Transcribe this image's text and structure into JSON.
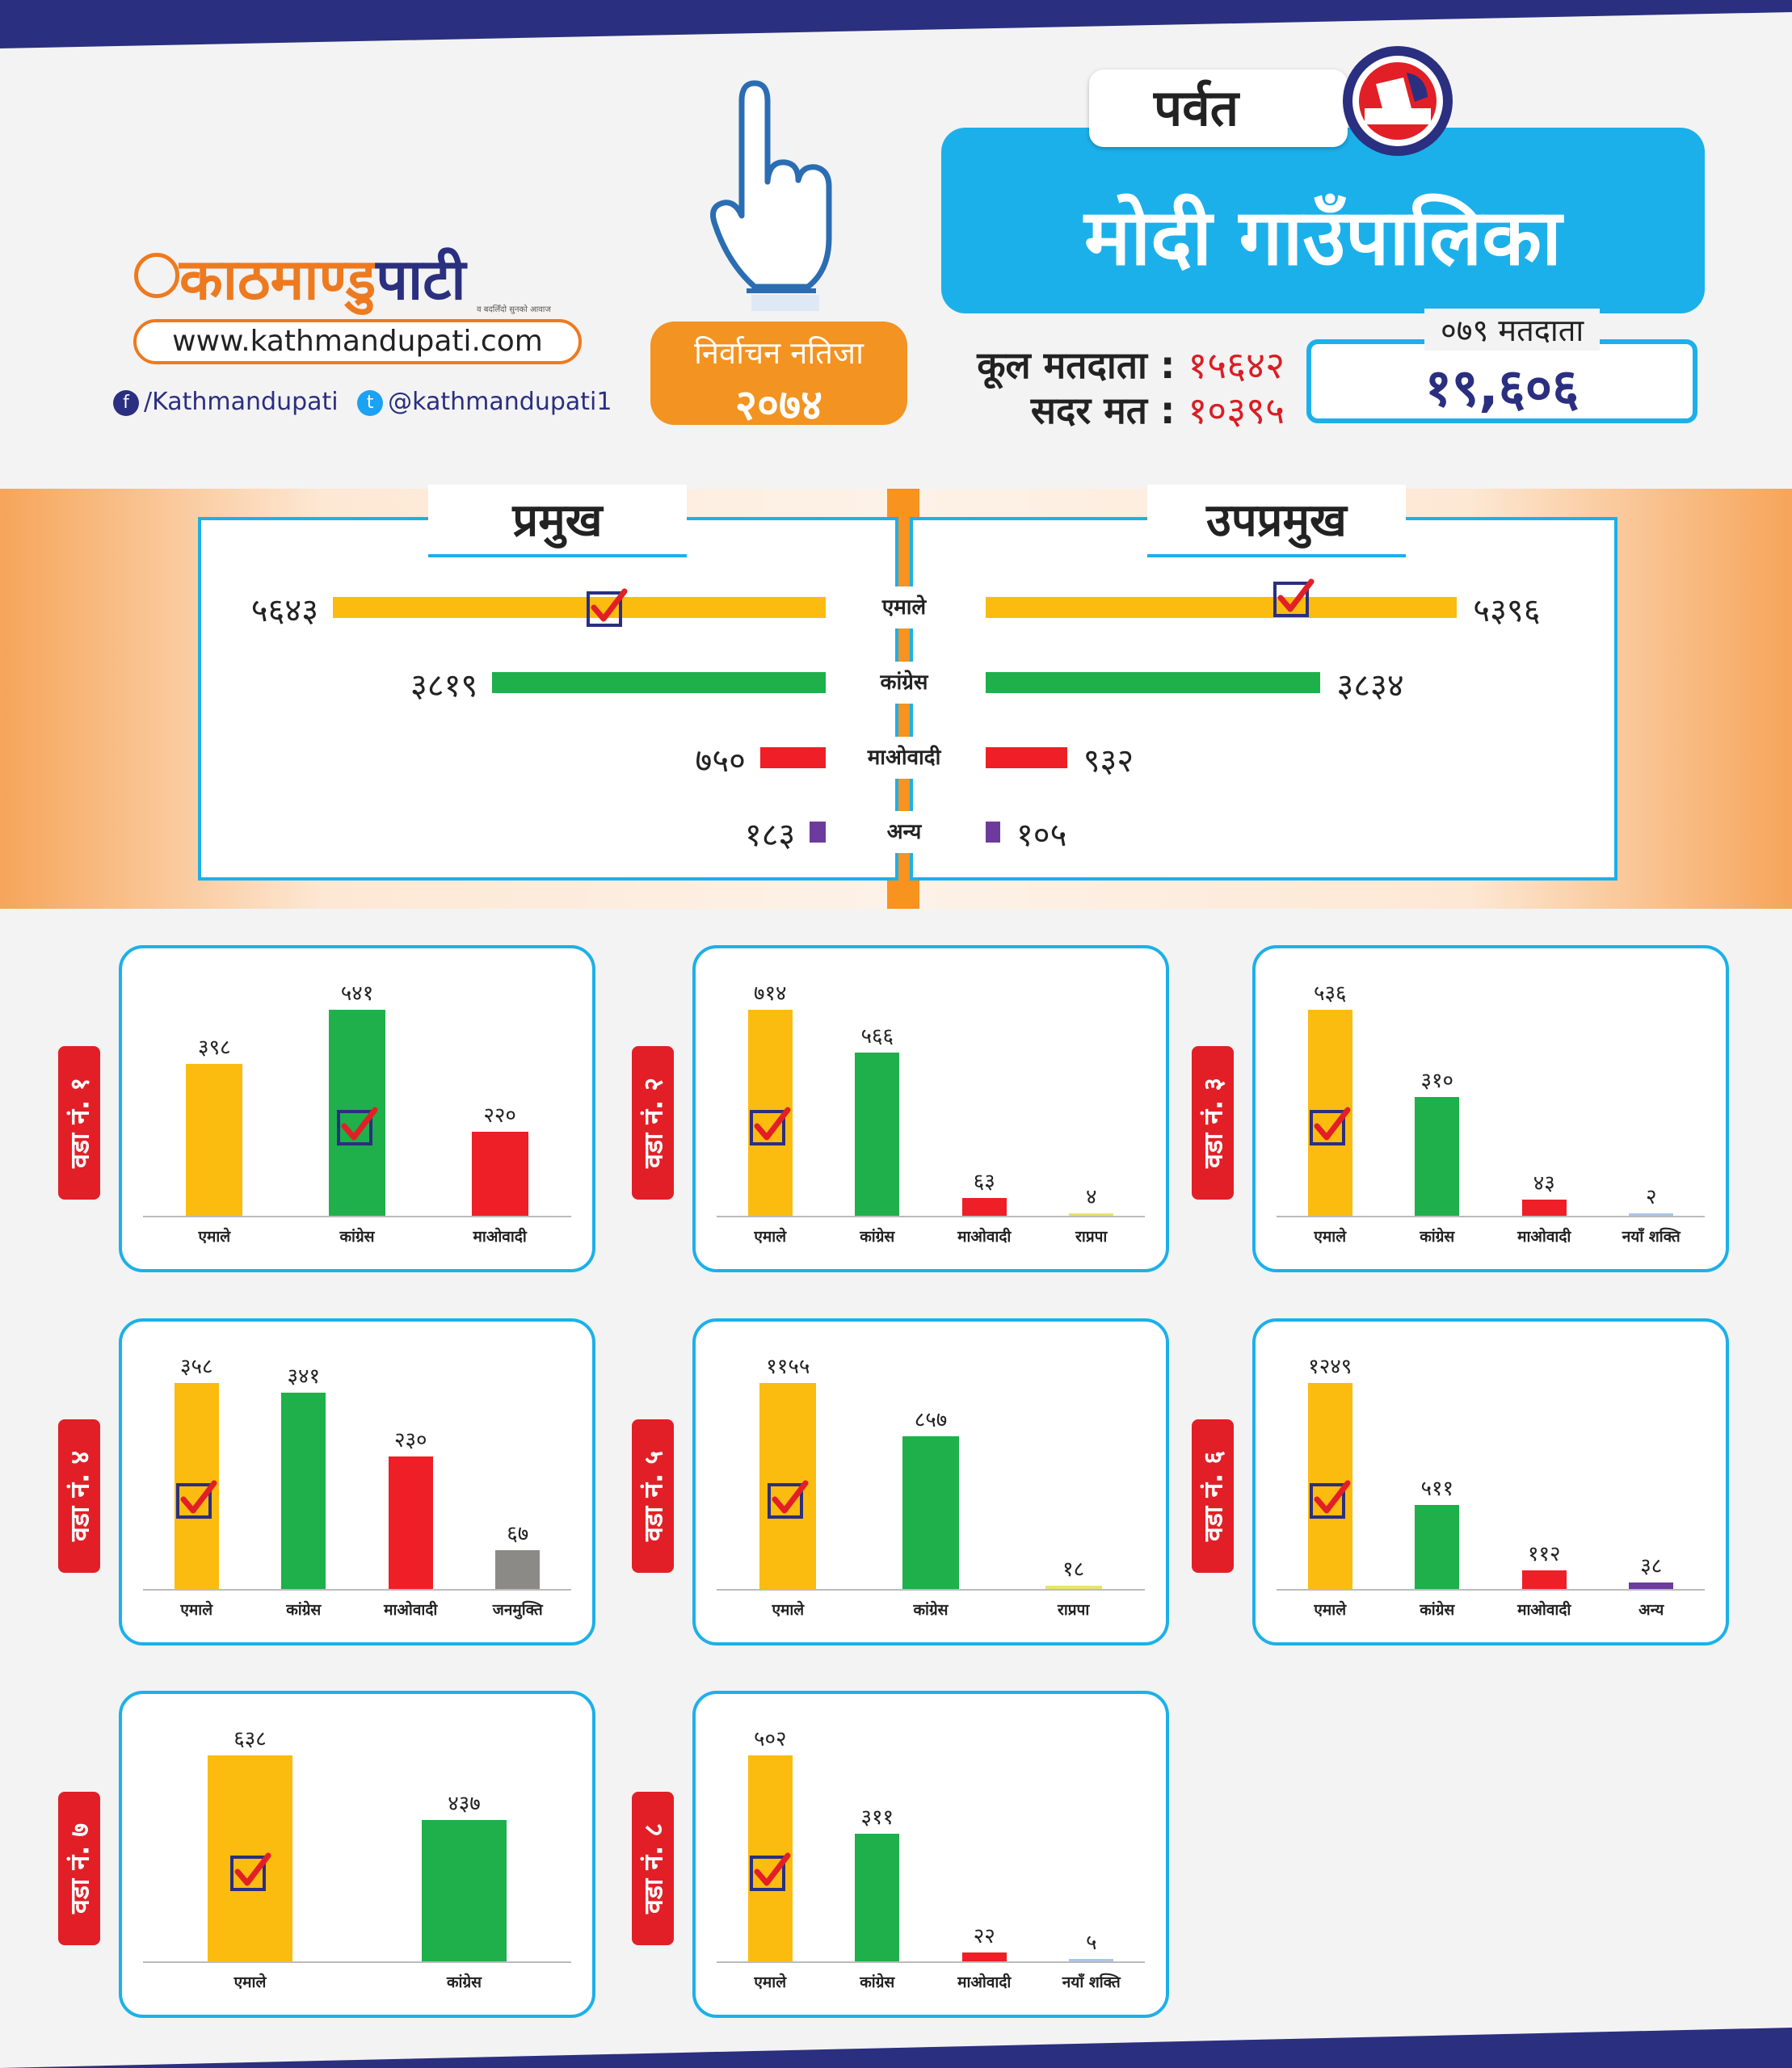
{
  "brand": {
    "logo_pre": "काठमाण्डु",
    "logo_post": "पाटी",
    "tagline": "व बदलिँदो सुनको आवाज",
    "url": "www.kathmandupati.com",
    "facebook": "/Kathmandupati",
    "twitter": "@kathmandupati1"
  },
  "header": {
    "election_label": "निर्वाचन नतिजा",
    "election_year": "२०७४",
    "district": "पर्वत",
    "municipality": "मोदी गाउँपालिका",
    "total_voters_label": "कूल मतदाता",
    "total_voters": "१५६४२",
    "valid_votes_label": "सदर मत",
    "valid_votes": "१०३९५",
    "voters_079_label": "०७९ मतदाता",
    "voters_079": "१९,६०६"
  },
  "colors": {
    "uml": "#fbbc0f",
    "congress": "#1faf4b",
    "maoist": "#ee1f26",
    "other": "#6d3b9c",
    "rpp": "#e8e36b",
    "naya_shakti": "#a9c6e8",
    "janamukti": "#8c8a87",
    "accent_blue": "#1cb0ea",
    "accent_orange": "#f39321",
    "navy": "#2b2f7f"
  },
  "icons": [
    "vote-finger-icon",
    "ballot-box-icon",
    "facebook-icon",
    "twitter-icon",
    "checkmark-icon"
  ],
  "summary": {
    "chief_title": "प्रमुख",
    "deputy_title": "उपप्रमुख",
    "parties": [
      "एमाले",
      "कांग्रेस",
      "माओवादी",
      "अन्य"
    ]
  },
  "chart_data": [
    {
      "type": "bar",
      "orientation": "horizontal",
      "title": "प्रमुख",
      "categories": [
        "एमाले",
        "कांग्रेस",
        "माओवादी",
        "अन्य"
      ],
      "values": [
        5643,
        3819,
        750,
        183
      ],
      "labels": [
        "५६४३",
        "३८१९",
        "७५०",
        "१८३"
      ],
      "winner": "एमाले"
    },
    {
      "type": "bar",
      "orientation": "horizontal",
      "title": "उपप्रमुख",
      "categories": [
        "एमाले",
        "कांग्रेस",
        "माओवादी",
        "अन्य"
      ],
      "values": [
        5396,
        3834,
        932,
        105
      ],
      "labels": [
        "५३९६",
        "३८३४",
        "९३२",
        "१०५"
      ],
      "winner": "एमाले"
    },
    {
      "type": "bar",
      "title": "वडा नं. १",
      "categories": [
        "एमाले",
        "कांग्रेस",
        "माओवादी"
      ],
      "values": [
        398,
        541,
        220
      ],
      "labels": [
        "३९८",
        "५४१",
        "२२०"
      ],
      "colors": [
        "uml",
        "congress",
        "maoist"
      ],
      "winner": "कांग्रेस"
    },
    {
      "type": "bar",
      "title": "वडा नं. २",
      "categories": [
        "एमाले",
        "कांग्रेस",
        "माओवादी",
        "राप्रपा"
      ],
      "values": [
        714,
        566,
        63,
        4
      ],
      "labels": [
        "७१४",
        "५६६",
        "६३",
        "४"
      ],
      "colors": [
        "uml",
        "congress",
        "maoist",
        "rpp"
      ],
      "winner": "एमाले"
    },
    {
      "type": "bar",
      "title": "वडा नं. ३",
      "categories": [
        "एमाले",
        "कांग्रेस",
        "माओवादी",
        "नयाँ शक्ति"
      ],
      "values": [
        536,
        310,
        43,
        2
      ],
      "labels": [
        "५३६",
        "३१०",
        "४३",
        "२"
      ],
      "colors": [
        "uml",
        "congress",
        "maoist",
        "naya_shakti"
      ],
      "winner": "एमाले"
    },
    {
      "type": "bar",
      "title": "वडा नं. ४",
      "categories": [
        "एमाले",
        "कांग्रेस",
        "माओवादी",
        "जनमुक्ति"
      ],
      "values": [
        358,
        341,
        230,
        67
      ],
      "labels": [
        "३५८",
        "३४१",
        "२३०",
        "६७"
      ],
      "colors": [
        "uml",
        "congress",
        "maoist",
        "janamukti"
      ],
      "winner": "एमाले"
    },
    {
      "type": "bar",
      "title": "वडा नं. ५",
      "categories": [
        "एमाले",
        "कांग्रेस",
        "राप्रपा"
      ],
      "values": [
        1155,
        857,
        18
      ],
      "labels": [
        "११५५",
        "८५७",
        "१८"
      ],
      "colors": [
        "uml",
        "congress",
        "rpp"
      ],
      "winner": "एमाले"
    },
    {
      "type": "bar",
      "title": "वडा नं. ६",
      "categories": [
        "एमाले",
        "कांग्रेस",
        "माओवादी",
        "अन्य"
      ],
      "values": [
        1249,
        511,
        112,
        38
      ],
      "labels": [
        "१२४९",
        "५११",
        "११२",
        "३८"
      ],
      "colors": [
        "uml",
        "congress",
        "maoist",
        "other"
      ],
      "winner": "एमाले"
    },
    {
      "type": "bar",
      "title": "वडा नं. ७",
      "categories": [
        "एमाले",
        "कांग्रेस"
      ],
      "values": [
        638,
        437
      ],
      "labels": [
        "६३८",
        "४३७"
      ],
      "colors": [
        "uml",
        "congress"
      ],
      "winner": "एमाले"
    },
    {
      "type": "bar",
      "title": "वडा नं. ८",
      "categories": [
        "एमाले",
        "कांग्रेस",
        "माओवादी",
        "नयाँ शक्ति"
      ],
      "values": [
        502,
        311,
        22,
        5
      ],
      "labels": [
        "५०२",
        "३११",
        "२२",
        "५"
      ],
      "colors": [
        "uml",
        "congress",
        "maoist",
        "naya_shakti"
      ],
      "winner": "एमाले"
    }
  ]
}
